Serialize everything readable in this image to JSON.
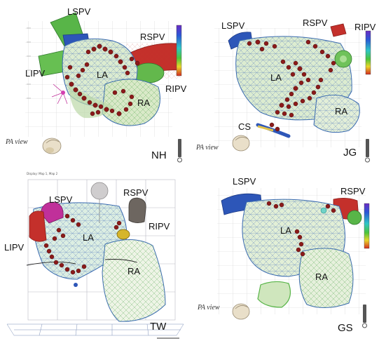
{
  "panels": [
    {
      "id": "NH",
      "view": "PA view",
      "labels": {
        "lspv": "LSPV",
        "lipv": "LIPV",
        "rspv": "RSPV",
        "ripv": "RIPV",
        "la": "LA",
        "ra": "RA"
      }
    },
    {
      "id": "JG",
      "view": "PA view",
      "labels": {
        "lspv": "LSPV",
        "rspv": "RSPV",
        "ripv": "RIPV",
        "la": "LA",
        "ra": "RA",
        "cs": "CS"
      }
    },
    {
      "id": "TW",
      "labels": {
        "lspv": "LSPV",
        "lipv": "LIPV",
        "rspv": "RSPV",
        "ripv": "RIPV",
        "la": "LA",
        "ra": "RA"
      },
      "header_text": "Display: Map 1, Map 2"
    },
    {
      "id": "GS",
      "view": "PA view",
      "labels": {
        "lspv": "LSPV",
        "rspv": "RSPV",
        "la": "LA",
        "ra": "RA"
      }
    }
  ],
  "colors": {
    "ablation_dot": "#8b1a1a",
    "mesh_blue": "#2a4fb0",
    "mesh_green": "#5fb24a",
    "vein_red": "#c4302b",
    "vein_blue": "#2d56b8",
    "vein_green": "#58b548",
    "vein_magenta": "#c0309a",
    "vein_gray": "#6d6660"
  },
  "icons": [
    "heart-orientation-icon",
    "scale-bar-icon",
    "color-scale-bar"
  ]
}
